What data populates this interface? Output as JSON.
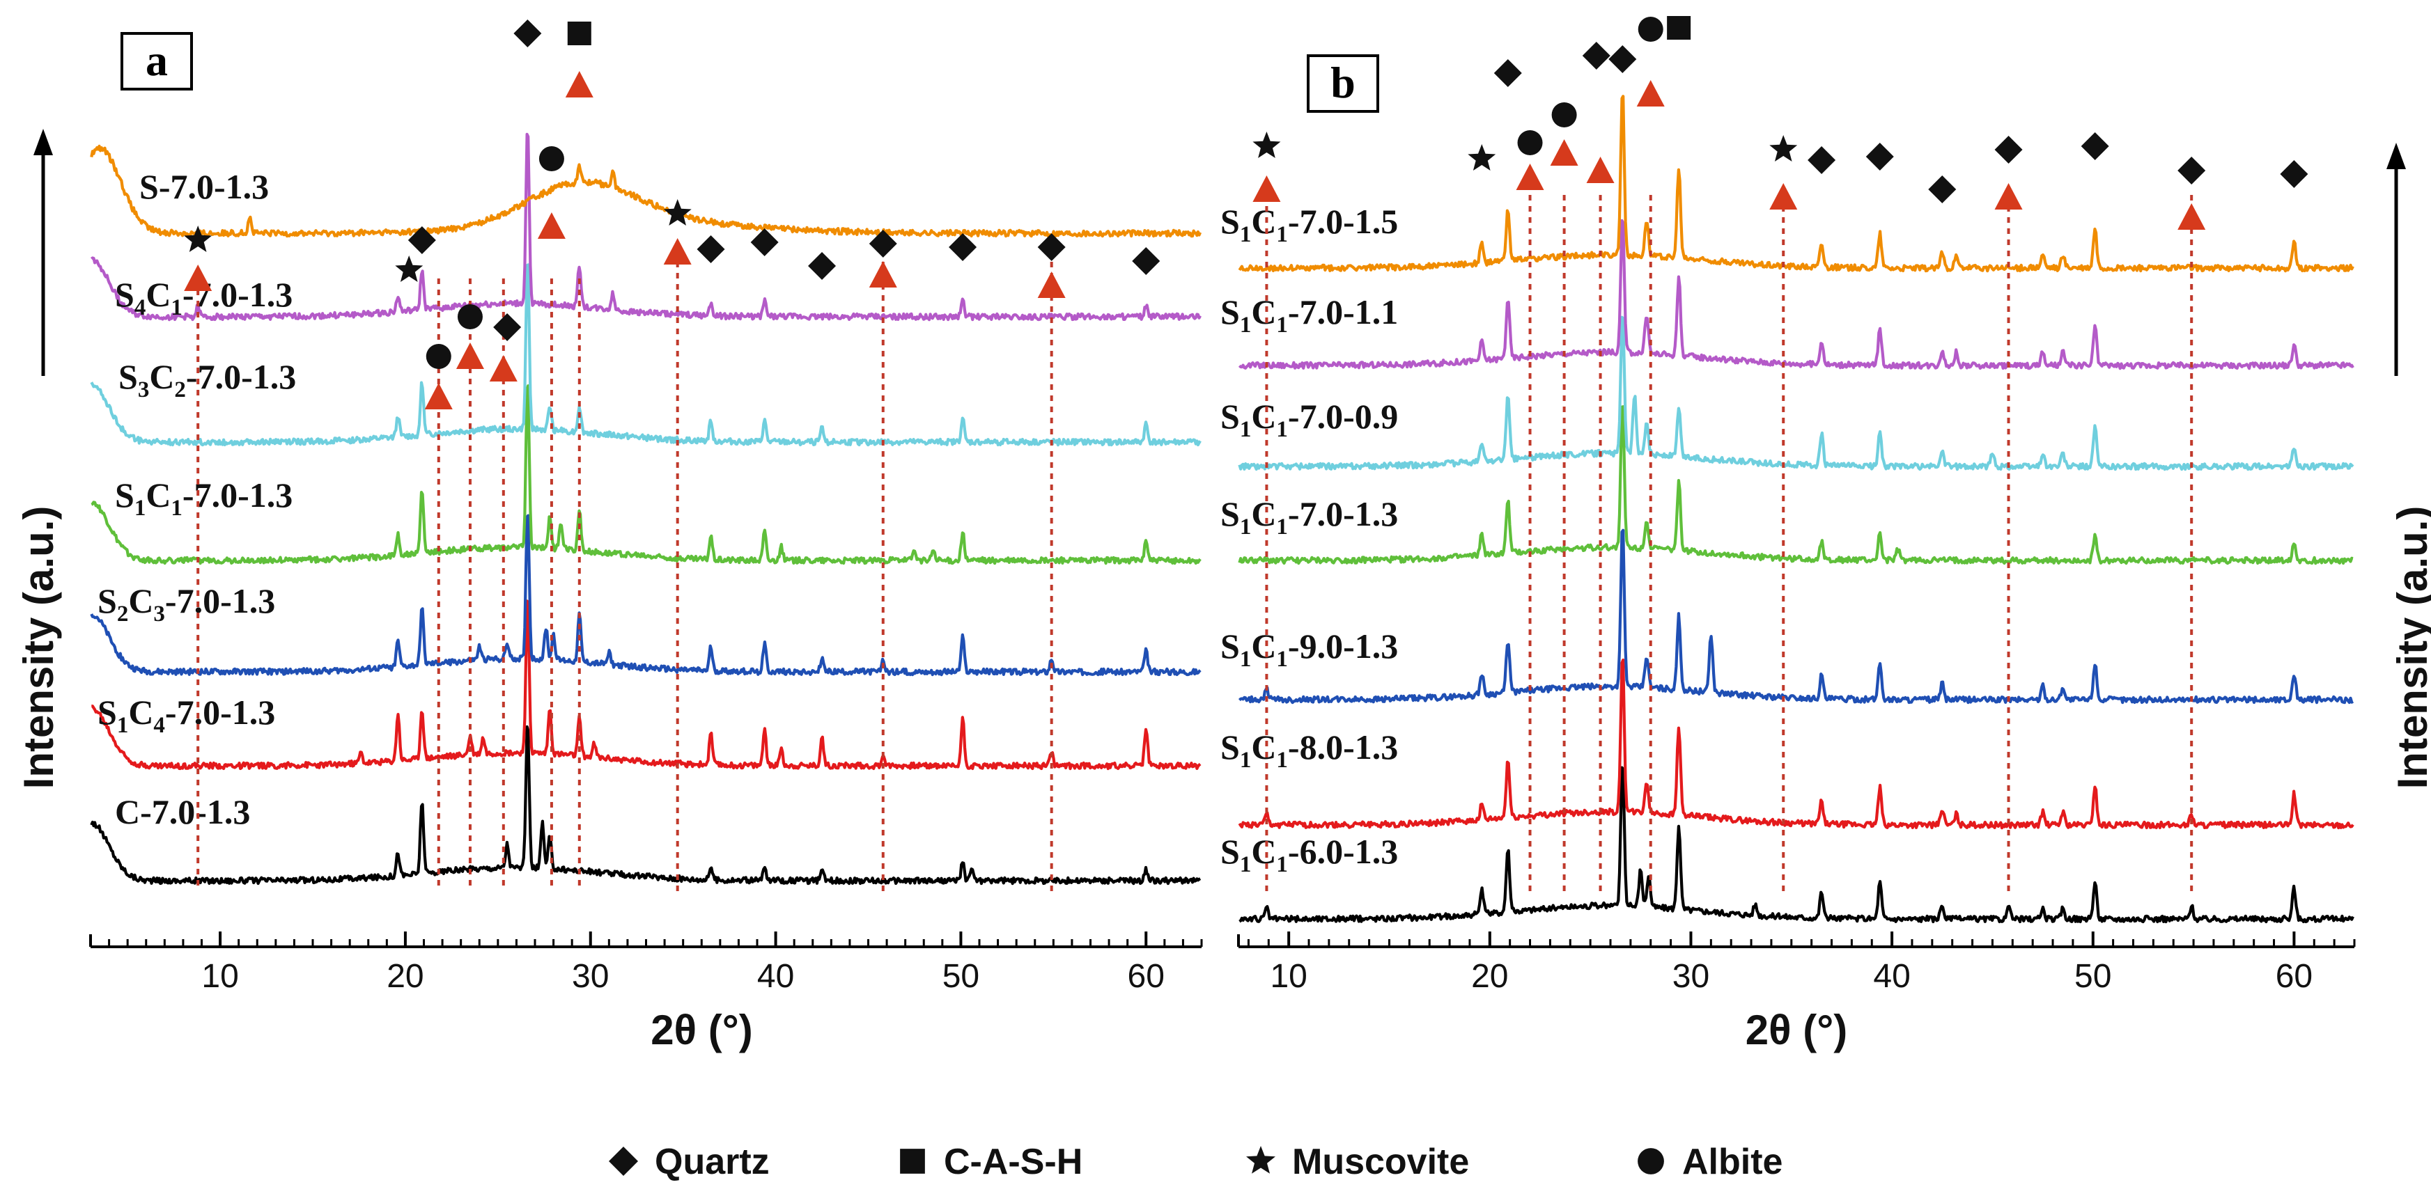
{
  "chart_data": [
    {
      "panel": "a",
      "type": "line",
      "xlabel": "2θ (°)",
      "ylabel": "Intensity (a.u.)",
      "xlim": [
        3,
        63
      ],
      "xticks": [
        10,
        20,
        30,
        40,
        50,
        60
      ],
      "series": [
        {
          "name": "C-7.0-1.3",
          "base": "C",
          "sub1": "",
          "mid": "",
          "sub2": "",
          "tail": "-7.0-1.3",
          "color": "#000000",
          "peaks": [
            [
              19.6,
              0.9
            ],
            [
              20.9,
              2.8
            ],
            [
              25.5,
              0.9
            ],
            [
              26.6,
              5.6
            ],
            [
              27.4,
              1.7
            ],
            [
              27.8,
              1.2
            ],
            [
              36.5,
              0.5
            ],
            [
              39.4,
              0.5
            ],
            [
              42.5,
              0.4
            ],
            [
              50.1,
              0.7
            ],
            [
              50.6,
              0.5
            ],
            [
              60.0,
              0.4
            ]
          ]
        },
        {
          "name": "S1C4-7.0-1.3",
          "base": "S",
          "sub1": "1",
          "mid": "C",
          "sub2": "4",
          "tail": "-7.0-1.3",
          "color": "#e41a1c",
          "peaks": [
            [
              17.6,
              0.4
            ],
            [
              19.6,
              1.8
            ],
            [
              20.9,
              1.9
            ],
            [
              23.5,
              0.7
            ],
            [
              24.2,
              0.6
            ],
            [
              26.6,
              6.0
            ],
            [
              27.8,
              1.7
            ],
            [
              29.4,
              1.4
            ],
            [
              30.2,
              0.5
            ],
            [
              36.5,
              1.2
            ],
            [
              39.4,
              1.4
            ],
            [
              40.3,
              0.7
            ],
            [
              42.5,
              1.1
            ],
            [
              45.8,
              0.4
            ],
            [
              50.1,
              1.8
            ],
            [
              54.9,
              0.5
            ],
            [
              60.0,
              1.4
            ]
          ]
        },
        {
          "name": "S2C3-7.0-1.3",
          "base": "S",
          "sub1": "2",
          "mid": "C",
          "sub2": "3",
          "tail": "-7.0-1.3",
          "color": "#1f4fb4",
          "peaks": [
            [
              19.6,
              1.0
            ],
            [
              20.9,
              2.2
            ],
            [
              24.0,
              0.5
            ],
            [
              25.5,
              0.6
            ],
            [
              26.6,
              5.8
            ],
            [
              27.6,
              1.2
            ],
            [
              28.0,
              1.0
            ],
            [
              29.4,
              1.8
            ],
            [
              31.0,
              0.5
            ],
            [
              36.5,
              0.9
            ],
            [
              39.4,
              1.1
            ],
            [
              42.5,
              0.5
            ],
            [
              45.8,
              0.4
            ],
            [
              50.1,
              1.3
            ],
            [
              54.9,
              0.5
            ],
            [
              60.0,
              0.8
            ]
          ]
        },
        {
          "name": "S1C1-7.0-1.3",
          "base": "S",
          "sub1": "1",
          "mid": "C",
          "sub2": "1",
          "tail": "-7.0-1.3",
          "color": "#5fbf3a",
          "peaks": [
            [
              19.6,
              0.8
            ],
            [
              20.9,
              2.4
            ],
            [
              26.6,
              6.4
            ],
            [
              27.8,
              1.2
            ],
            [
              28.4,
              1.0
            ],
            [
              29.4,
              1.5
            ],
            [
              36.5,
              0.9
            ],
            [
              39.4,
              1.1
            ],
            [
              40.3,
              0.5
            ],
            [
              47.5,
              0.4
            ],
            [
              48.5,
              0.4
            ],
            [
              50.1,
              1.1
            ],
            [
              60.0,
              0.8
            ]
          ]
        },
        {
          "name": "S3C2-7.0-1.3",
          "base": "S",
          "sub1": "3",
          "mid": "C",
          "sub2": "2",
          "tail": "-7.0-1.3",
          "color": "#6fcfde",
          "peaks": [
            [
              19.6,
              0.8
            ],
            [
              20.9,
              2.0
            ],
            [
              26.6,
              6.6
            ],
            [
              27.8,
              0.9
            ],
            [
              29.4,
              1.0
            ],
            [
              36.5,
              0.8
            ],
            [
              39.4,
              0.8
            ],
            [
              42.5,
              0.5
            ],
            [
              50.1,
              0.9
            ],
            [
              60.0,
              0.7
            ]
          ]
        },
        {
          "name": "S4C1-7.0-1.3",
          "base": "S",
          "sub1": "4",
          "mid": "C",
          "sub2": "1",
          "tail": "-7.0-1.3",
          "color": "#b45ac8",
          "peaks": [
            [
              8.8,
              0.4
            ],
            [
              19.6,
              0.6
            ],
            [
              20.9,
              1.5
            ],
            [
              26.6,
              6.8
            ],
            [
              29.4,
              1.6
            ],
            [
              31.2,
              0.6
            ],
            [
              36.5,
              0.5
            ],
            [
              39.4,
              0.6
            ],
            [
              50.1,
              0.6
            ],
            [
              60.0,
              0.4
            ]
          ]
        },
        {
          "name": "S-7.0-1.3",
          "base": "S",
          "sub1": "",
          "mid": "",
          "sub2": "",
          "tail": "-7.0-1.3",
          "color": "#f08c00",
          "peaks": [
            [
              11.6,
              0.6
            ],
            [
              29.4,
              0.6
            ],
            [
              31.2,
              0.6
            ]
          ]
        }
      ],
      "markers": [
        {
          "type": "star",
          "x": 8.8
        },
        {
          "type": "diamond",
          "x": 20.9
        },
        {
          "type": "star",
          "x": 20.2
        },
        {
          "type": "circle",
          "x": 21.8
        },
        {
          "type": "circle",
          "x": 23.5
        },
        {
          "type": "diamond",
          "x": 25.5
        },
        {
          "type": "diamond",
          "x": 26.6
        },
        {
          "type": "circle",
          "x": 27.9
        },
        {
          "type": "square",
          "x": 29.4
        },
        {
          "type": "star",
          "x": 34.7
        },
        {
          "type": "diamond",
          "x": 36.5
        },
        {
          "type": "diamond",
          "x": 39.4
        },
        {
          "type": "diamond",
          "x": 42.5
        },
        {
          "type": "diamond",
          "x": 45.8
        },
        {
          "type": "diamond",
          "x": 50.1
        },
        {
          "type": "diamond",
          "x": 54.9
        },
        {
          "type": "diamond",
          "x": 60.0
        }
      ],
      "triangles": [
        8.8,
        21.8,
        23.5,
        25.3,
        27.9,
        29.4,
        34.7,
        45.8,
        54.9
      ],
      "dashed_lines": [
        8.8,
        21.8,
        23.5,
        25.3,
        27.9,
        29.4,
        34.7,
        45.8,
        54.9
      ]
    },
    {
      "panel": "b",
      "type": "line",
      "xlabel": "2θ (°)",
      "ylabel": "Intensity (a.u.)",
      "xlim": [
        7.5,
        63
      ],
      "xticks": [
        10,
        20,
        30,
        40,
        50,
        60
      ],
      "series": [
        {
          "name": "S1C1-6.0-1.3",
          "base": "S",
          "sub1": "1",
          "mid": "C",
          "sub2": "1",
          "tail": "-6.0-1.3",
          "color": "#000000",
          "peaks": [
            [
              8.9,
              0.4
            ],
            [
              19.6,
              0.9
            ],
            [
              20.9,
              2.4
            ],
            [
              26.6,
              5.6
            ],
            [
              27.5,
              1.4
            ],
            [
              27.9,
              1.2
            ],
            [
              29.4,
              3.2
            ],
            [
              33.2,
              0.4
            ],
            [
              36.5,
              1.0
            ],
            [
              39.4,
              1.4
            ],
            [
              42.5,
              0.5
            ],
            [
              45.8,
              0.4
            ],
            [
              47.5,
              0.4
            ],
            [
              48.5,
              0.4
            ],
            [
              50.1,
              1.4
            ],
            [
              54.9,
              0.5
            ],
            [
              60.0,
              1.2
            ]
          ]
        },
        {
          "name": "S1C1-8.0-1.3",
          "base": "S",
          "sub1": "1",
          "mid": "C",
          "sub2": "1",
          "tail": "-8.0-1.3",
          "color": "#e41a1c",
          "peaks": [
            [
              8.9,
              0.4
            ],
            [
              19.6,
              0.6
            ],
            [
              20.9,
              2.2
            ],
            [
              26.6,
              6.0
            ],
            [
              27.8,
              1.2
            ],
            [
              29.4,
              3.4
            ],
            [
              36.5,
              0.9
            ],
            [
              39.4,
              1.4
            ],
            [
              42.5,
              0.6
            ],
            [
              43.2,
              0.4
            ],
            [
              47.5,
              0.5
            ],
            [
              48.5,
              0.5
            ],
            [
              50.1,
              1.5
            ],
            [
              54.9,
              0.4
            ],
            [
              60.0,
              1.2
            ]
          ]
        },
        {
          "name": "S1C1-9.0-1.3",
          "base": "S",
          "sub1": "1",
          "mid": "C",
          "sub2": "1",
          "tail": "-9.0-1.3",
          "color": "#1f4fb4",
          "peaks": [
            [
              8.9,
              0.4
            ],
            [
              19.6,
              0.8
            ],
            [
              20.9,
              2.0
            ],
            [
              26.6,
              6.2
            ],
            [
              27.8,
              1.2
            ],
            [
              29.4,
              2.8
            ],
            [
              31.0,
              2.2
            ],
            [
              36.5,
              0.9
            ],
            [
              39.4,
              1.4
            ],
            [
              42.5,
              0.6
            ],
            [
              47.5,
              0.5
            ],
            [
              48.5,
              0.5
            ],
            [
              50.1,
              1.4
            ],
            [
              60.0,
              1.0
            ]
          ]
        },
        {
          "name": "S1C1-7.0-1.3",
          "base": "S",
          "sub1": "1",
          "mid": "C",
          "sub2": "1",
          "tail": "-7.0-1.3",
          "color": "#5fbf3a",
          "peaks": [
            [
              19.6,
              0.8
            ],
            [
              20.9,
              2.0
            ],
            [
              26.6,
              5.6
            ],
            [
              27.8,
              1.1
            ],
            [
              29.4,
              2.6
            ],
            [
              36.5,
              0.7
            ],
            [
              39.4,
              1.0
            ],
            [
              40.3,
              0.4
            ],
            [
              50.1,
              0.9
            ],
            [
              60.0,
              0.7
            ]
          ]
        },
        {
          "name": "S1C1-7.0-0.9",
          "base": "S",
          "sub1": "1",
          "mid": "C",
          "sub2": "1",
          "tail": "-7.0-0.9",
          "color": "#6fcfde",
          "peaks": [
            [
              19.6,
              0.7
            ],
            [
              20.9,
              2.4
            ],
            [
              26.6,
              5.4
            ],
            [
              27.2,
              2.2
            ],
            [
              27.8,
              1.3
            ],
            [
              29.4,
              1.8
            ],
            [
              36.5,
              1.2
            ],
            [
              39.4,
              1.4
            ],
            [
              42.5,
              0.6
            ],
            [
              45.0,
              0.5
            ],
            [
              47.5,
              0.5
            ],
            [
              48.5,
              0.5
            ],
            [
              50.1,
              1.5
            ],
            [
              60.0,
              0.7
            ]
          ]
        },
        {
          "name": "S1C1-7.0-1.1",
          "base": "S",
          "sub1": "1",
          "mid": "C",
          "sub2": "1",
          "tail": "-7.0-1.1",
          "color": "#b45ac8",
          "peaks": [
            [
              19.6,
              0.7
            ],
            [
              20.9,
              2.3
            ],
            [
              26.6,
              5.2
            ],
            [
              27.8,
              1.5
            ],
            [
              29.4,
              3.0
            ],
            [
              36.5,
              0.9
            ],
            [
              39.4,
              1.4
            ],
            [
              42.5,
              0.6
            ],
            [
              43.2,
              0.5
            ],
            [
              47.5,
              0.5
            ],
            [
              48.5,
              0.5
            ],
            [
              50.1,
              1.5
            ],
            [
              60.0,
              0.8
            ]
          ]
        },
        {
          "name": "S1C1-7.0-1.5",
          "base": "S",
          "sub1": "1",
          "mid": "C",
          "sub2": "1",
          "tail": "-7.0-1.5",
          "color": "#f08c00",
          "peaks": [
            [
              19.6,
              0.8
            ],
            [
              20.9,
              2.0
            ],
            [
              26.6,
              6.4
            ],
            [
              27.8,
              1.4
            ],
            [
              29.4,
              3.4
            ],
            [
              36.5,
              0.9
            ],
            [
              39.4,
              1.3
            ],
            [
              42.5,
              0.6
            ],
            [
              43.2,
              0.4
            ],
            [
              47.5,
              0.5
            ],
            [
              48.5,
              0.5
            ],
            [
              50.1,
              1.5
            ],
            [
              60.0,
              1.0
            ]
          ]
        }
      ],
      "markers": [
        {
          "type": "star",
          "x": 8.9
        },
        {
          "type": "star",
          "x": 19.6
        },
        {
          "type": "diamond",
          "x": 20.9
        },
        {
          "type": "circle",
          "x": 22.0
        },
        {
          "type": "circle",
          "x": 23.7
        },
        {
          "type": "diamond",
          "x": 25.3
        },
        {
          "type": "diamond",
          "x": 26.6
        },
        {
          "type": "circle",
          "x": 28.0
        },
        {
          "type": "square",
          "x": 29.4
        },
        {
          "type": "star",
          "x": 34.6
        },
        {
          "type": "diamond",
          "x": 36.5
        },
        {
          "type": "diamond",
          "x": 39.4
        },
        {
          "type": "diamond",
          "x": 42.5
        },
        {
          "type": "diamond",
          "x": 45.8
        },
        {
          "type": "diamond",
          "x": 50.1
        },
        {
          "type": "diamond",
          "x": 54.9
        },
        {
          "type": "diamond",
          "x": 60.0
        }
      ],
      "triangles": [
        8.9,
        22.0,
        23.7,
        25.5,
        28.0,
        34.6,
        45.8,
        54.9
      ],
      "dashed_lines": [
        8.9,
        22.0,
        23.7,
        25.5,
        28.0,
        34.6,
        45.8,
        54.9
      ]
    }
  ],
  "legend": {
    "items": [
      {
        "symbol": "diamond",
        "label": "Quartz"
      },
      {
        "symbol": "square",
        "label": "C-A-S-H"
      },
      {
        "symbol": "star",
        "label": "Muscovite"
      },
      {
        "symbol": "circle",
        "label": "Albite"
      }
    ]
  },
  "colors": {
    "axis": "#000000",
    "dashed": "#c0392b",
    "triangle": "#d63a1c"
  }
}
